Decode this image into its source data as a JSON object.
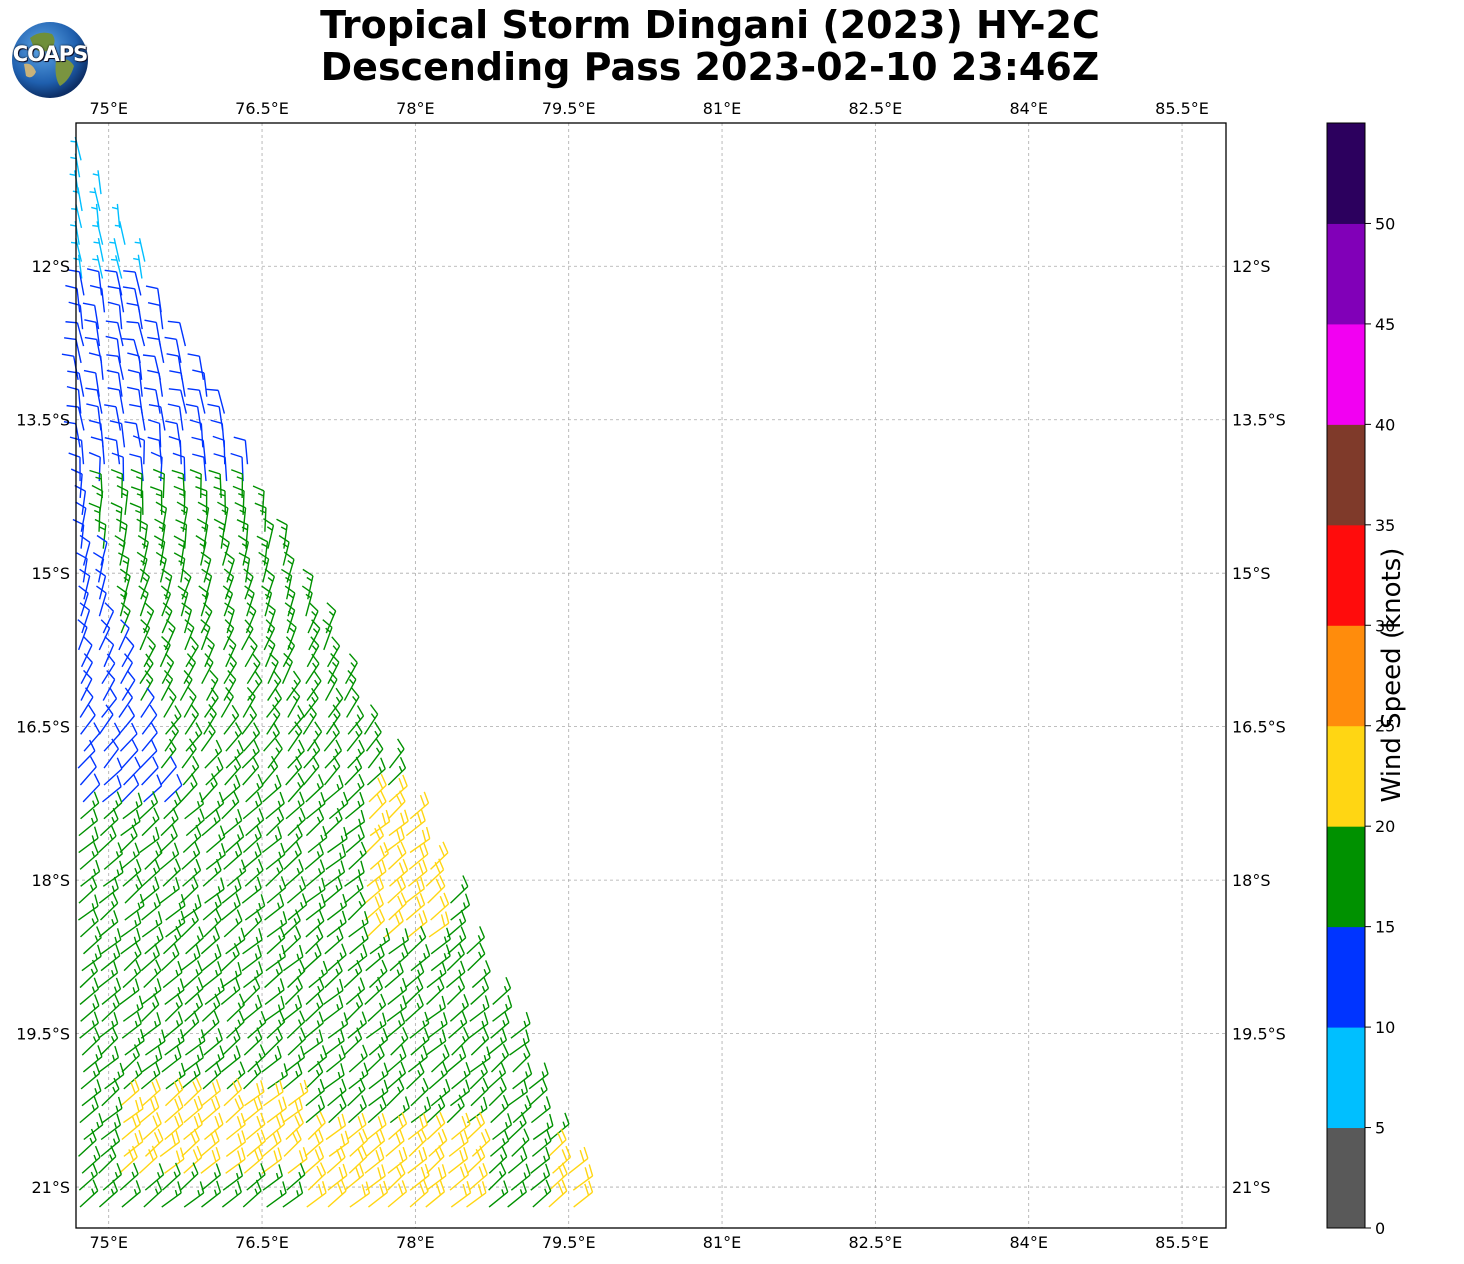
{
  "title_line1": "Tropical Storm Dingani (2023) HY-2C",
  "title_line2": "Descending Pass 2023-02-10 23:46Z",
  "logo_text": "COAPS",
  "lon_ticks": [
    "75°E",
    "76.5°E",
    "78°E",
    "79.5°E",
    "81°E",
    "82.5°E",
    "84°E",
    "85.5°E"
  ],
  "lat_ticks": [
    "12°S",
    "13.5°S",
    "15°S",
    "16.5°S",
    "18°S",
    "19.5°S",
    "21°S"
  ],
  "lon_values": [
    75,
    76.5,
    78,
    79.5,
    81,
    82.5,
    84,
    85.5
  ],
  "lat_values": [
    12,
    13.5,
    15,
    16.5,
    18,
    19.5,
    21
  ],
  "colorbar": {
    "label": "Wind Speed (knots)",
    "tick_labels": [
      "0",
      "5",
      "10",
      "15",
      "20",
      "25",
      "30",
      "35",
      "40",
      "45",
      "50"
    ],
    "bins": [
      {
        "min": 0,
        "max": 5,
        "color": "#595959"
      },
      {
        "min": 5,
        "max": 10,
        "color": "#00bfff"
      },
      {
        "min": 10,
        "max": 15,
        "color": "#0034ff"
      },
      {
        "min": 15,
        "max": 20,
        "color": "#009100"
      },
      {
        "min": 20,
        "max": 25,
        "color": "#ffd613"
      },
      {
        "min": 25,
        "max": 30,
        "color": "#ff8c0c"
      },
      {
        "min": 30,
        "max": 35,
        "color": "#ff0c0c"
      },
      {
        "min": 35,
        "max": 40,
        "color": "#7f3a2a"
      },
      {
        "min": 40,
        "max": 45,
        "color": "#f200f2"
      },
      {
        "min": 45,
        "max": 50,
        "color": "#8100b8"
      },
      {
        "min": 50,
        "max": 55,
        "color": "#2c005e"
      }
    ]
  },
  "map": {
    "lon_range": [
      74.68,
      85.93
    ],
    "lat_range": [
      10.6,
      21.4
    ],
    "swath": {
      "north_edge_lon": 74.68,
      "north_edge_lat": 10.75,
      "east_edge_lon": 76.2,
      "east_edge_lat": 13.55,
      "south_edge_lon": 79.8,
      "south_edge_lat": 21.4
    }
  }
}
